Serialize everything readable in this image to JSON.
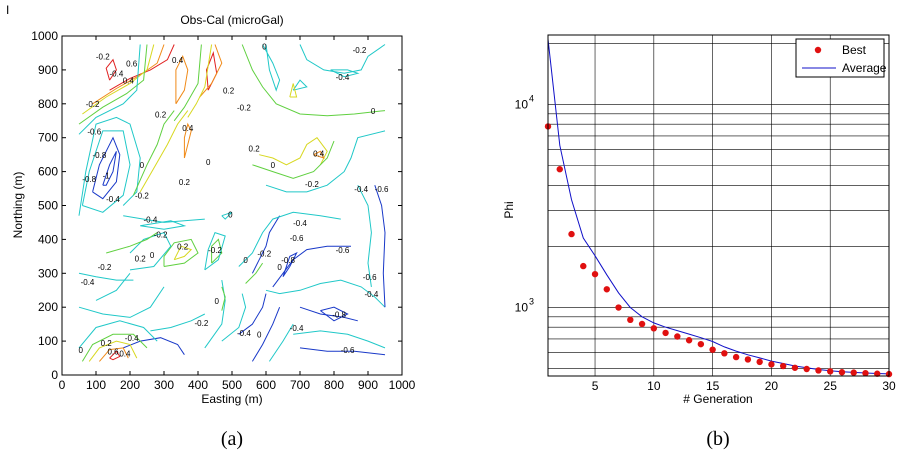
{
  "chart_data": [
    {
      "type": "contour",
      "title": "Obs-Cal (microGal)",
      "xlabel": "Easting (m)",
      "ylabel": "Northing (m)",
      "xlim": [
        0,
        1000
      ],
      "ylim": [
        0,
        1000
      ],
      "xticks": [
        "0",
        "100",
        "200",
        "300",
        "400",
        "500",
        "600",
        "700",
        "800",
        "900",
        "1000"
      ],
      "yticks": [
        "0",
        "100",
        "200",
        "300",
        "400",
        "500",
        "600",
        "700",
        "800",
        "900",
        "1000"
      ],
      "colors": {
        "red": "#e02020",
        "orange": "#f08a18",
        "yellow": "#d8d820",
        "green": "#60d040",
        "cyan": "#20c8c8",
        "blue": "#1838c8"
      },
      "contour_labels": [
        {
          "text": "-0.2",
          "x": 120,
          "y": 930
        },
        {
          "text": "-0.4",
          "x": 160,
          "y": 880
        },
        {
          "text": "0.6",
          "x": 205,
          "y": 910
        },
        {
          "text": "0.4",
          "x": 195,
          "y": 860
        },
        {
          "text": "-0.2",
          "x": 875,
          "y": 950
        },
        {
          "text": "0.4",
          "x": 340,
          "y": 920
        },
        {
          "text": "0",
          "x": 595,
          "y": 960
        },
        {
          "text": "-0.4",
          "x": 825,
          "y": 870
        },
        {
          "text": "0.2",
          "x": 490,
          "y": 830
        },
        {
          "text": "-0.2",
          "x": 535,
          "y": 780
        },
        {
          "text": "-0.2",
          "x": 90,
          "y": 790
        },
        {
          "text": "0",
          "x": 915,
          "y": 770
        },
        {
          "text": "0.2",
          "x": 290,
          "y": 760
        },
        {
          "text": "-0.6",
          "x": 95,
          "y": 710
        },
        {
          "text": "0.4",
          "x": 370,
          "y": 720
        },
        {
          "text": "-0.8",
          "x": 110,
          "y": 640
        },
        {
          "text": "0.2",
          "x": 565,
          "y": 660
        },
        {
          "text": "0.4",
          "x": 755,
          "y": 645
        },
        {
          "text": "-1",
          "x": 130,
          "y": 580
        },
        {
          "text": "0",
          "x": 430,
          "y": 620
        },
        {
          "text": "0",
          "x": 620,
          "y": 610
        },
        {
          "text": "-0.8",
          "x": 80,
          "y": 570
        },
        {
          "text": "0",
          "x": 235,
          "y": 610
        },
        {
          "text": "0.2",
          "x": 360,
          "y": 560
        },
        {
          "text": "-0.2",
          "x": 735,
          "y": 555
        },
        {
          "text": "-0.4",
          "x": 880,
          "y": 540
        },
        {
          "text": "-0.6",
          "x": 940,
          "y": 540
        },
        {
          "text": "-0.4",
          "x": 150,
          "y": 510
        },
        {
          "text": "-0.2",
          "x": 235,
          "y": 520
        },
        {
          "text": "-0.4",
          "x": 260,
          "y": 450
        },
        {
          "text": "-0.4",
          "x": 700,
          "y": 440
        },
        {
          "text": "0",
          "x": 495,
          "y": 465
        },
        {
          "text": "-0.2",
          "x": 290,
          "y": 405
        },
        {
          "text": "0.2",
          "x": 355,
          "y": 370
        },
        {
          "text": "0.2",
          "x": 230,
          "y": 335
        },
        {
          "text": "-0.6",
          "x": 690,
          "y": 395
        },
        {
          "text": "0",
          "x": 265,
          "y": 345
        },
        {
          "text": "-0.2",
          "x": 450,
          "y": 360
        },
        {
          "text": "-0.2",
          "x": 595,
          "y": 350
        },
        {
          "text": "-0.6",
          "x": 825,
          "y": 360
        },
        {
          "text": "-0.8",
          "x": 665,
          "y": 330
        },
        {
          "text": "-0.2",
          "x": 125,
          "y": 310
        },
        {
          "text": "0",
          "x": 540,
          "y": 330
        },
        {
          "text": "0",
          "x": 640,
          "y": 310
        },
        {
          "text": "-0.4",
          "x": 75,
          "y": 265
        },
        {
          "text": "-0.6",
          "x": 905,
          "y": 280
        },
        {
          "text": "-0.4",
          "x": 910,
          "y": 230
        },
        {
          "text": "0",
          "x": 455,
          "y": 210
        },
        {
          "text": "-0.2",
          "x": 410,
          "y": 145
        },
        {
          "text": "-0.8",
          "x": 815,
          "y": 170
        },
        {
          "text": "-0.4",
          "x": 535,
          "y": 115
        },
        {
          "text": "-0.4",
          "x": 690,
          "y": 130
        },
        {
          "text": "0",
          "x": 580,
          "y": 110
        },
        {
          "text": "0.2",
          "x": 130,
          "y": 85
        },
        {
          "text": "-0.4",
          "x": 205,
          "y": 100
        },
        {
          "text": "0.6",
          "x": 150,
          "y": 60
        },
        {
          "text": "0",
          "x": 55,
          "y": 65
        },
        {
          "text": "-0.6",
          "x": 840,
          "y": 65
        },
        {
          "text": "0.4",
          "x": 185,
          "y": 55
        }
      ]
    },
    {
      "type": "line",
      "xlabel": "# Generation",
      "ylabel": "Phi",
      "yscale": "log",
      "xlim": [
        1,
        30
      ],
      "ylim": [
        460,
        22000
      ],
      "xticks": [
        "5",
        "10",
        "15",
        "20",
        "25",
        "30"
      ],
      "yticks": [
        "10",
        "10"
      ],
      "ytick_exponents": [
        "3",
        "4"
      ],
      "legend_position": "top-right",
      "grid": true,
      "series": [
        {
          "name": "Best",
          "style": "markers",
          "color": "#e01010",
          "x": [
            1,
            2,
            3,
            4,
            5,
            6,
            7,
            8,
            9,
            10,
            11,
            12,
            13,
            14,
            15,
            16,
            17,
            18,
            19,
            20,
            21,
            22,
            23,
            24,
            25,
            26,
            27,
            28,
            29,
            30
          ],
          "values": [
            7800,
            4800,
            2300,
            1600,
            1460,
            1230,
            1000,
            870,
            830,
            790,
            750,
            720,
            690,
            660,
            620,
            595,
            570,
            555,
            540,
            525,
            515,
            505,
            498,
            490,
            485,
            480,
            478,
            475,
            472,
            470
          ]
        },
        {
          "name": "Average",
          "style": "line",
          "color": "#1010c8",
          "x": [
            1,
            2,
            3,
            4,
            5,
            6,
            7,
            8,
            9,
            10,
            11,
            12,
            13,
            14,
            15,
            16,
            17,
            18,
            19,
            20,
            21,
            22,
            23,
            24,
            25,
            26,
            27,
            28,
            29,
            30
          ],
          "values": [
            21000,
            6300,
            3400,
            2200,
            1800,
            1450,
            1180,
            1000,
            900,
            840,
            800,
            770,
            740,
            710,
            680,
            640,
            610,
            585,
            565,
            545,
            530,
            515,
            505,
            495,
            488,
            483,
            479,
            476,
            473,
            471
          ]
        }
      ]
    }
  ],
  "captions": {
    "left": "(a)",
    "right": "(b)"
  },
  "corner_mark": "I"
}
